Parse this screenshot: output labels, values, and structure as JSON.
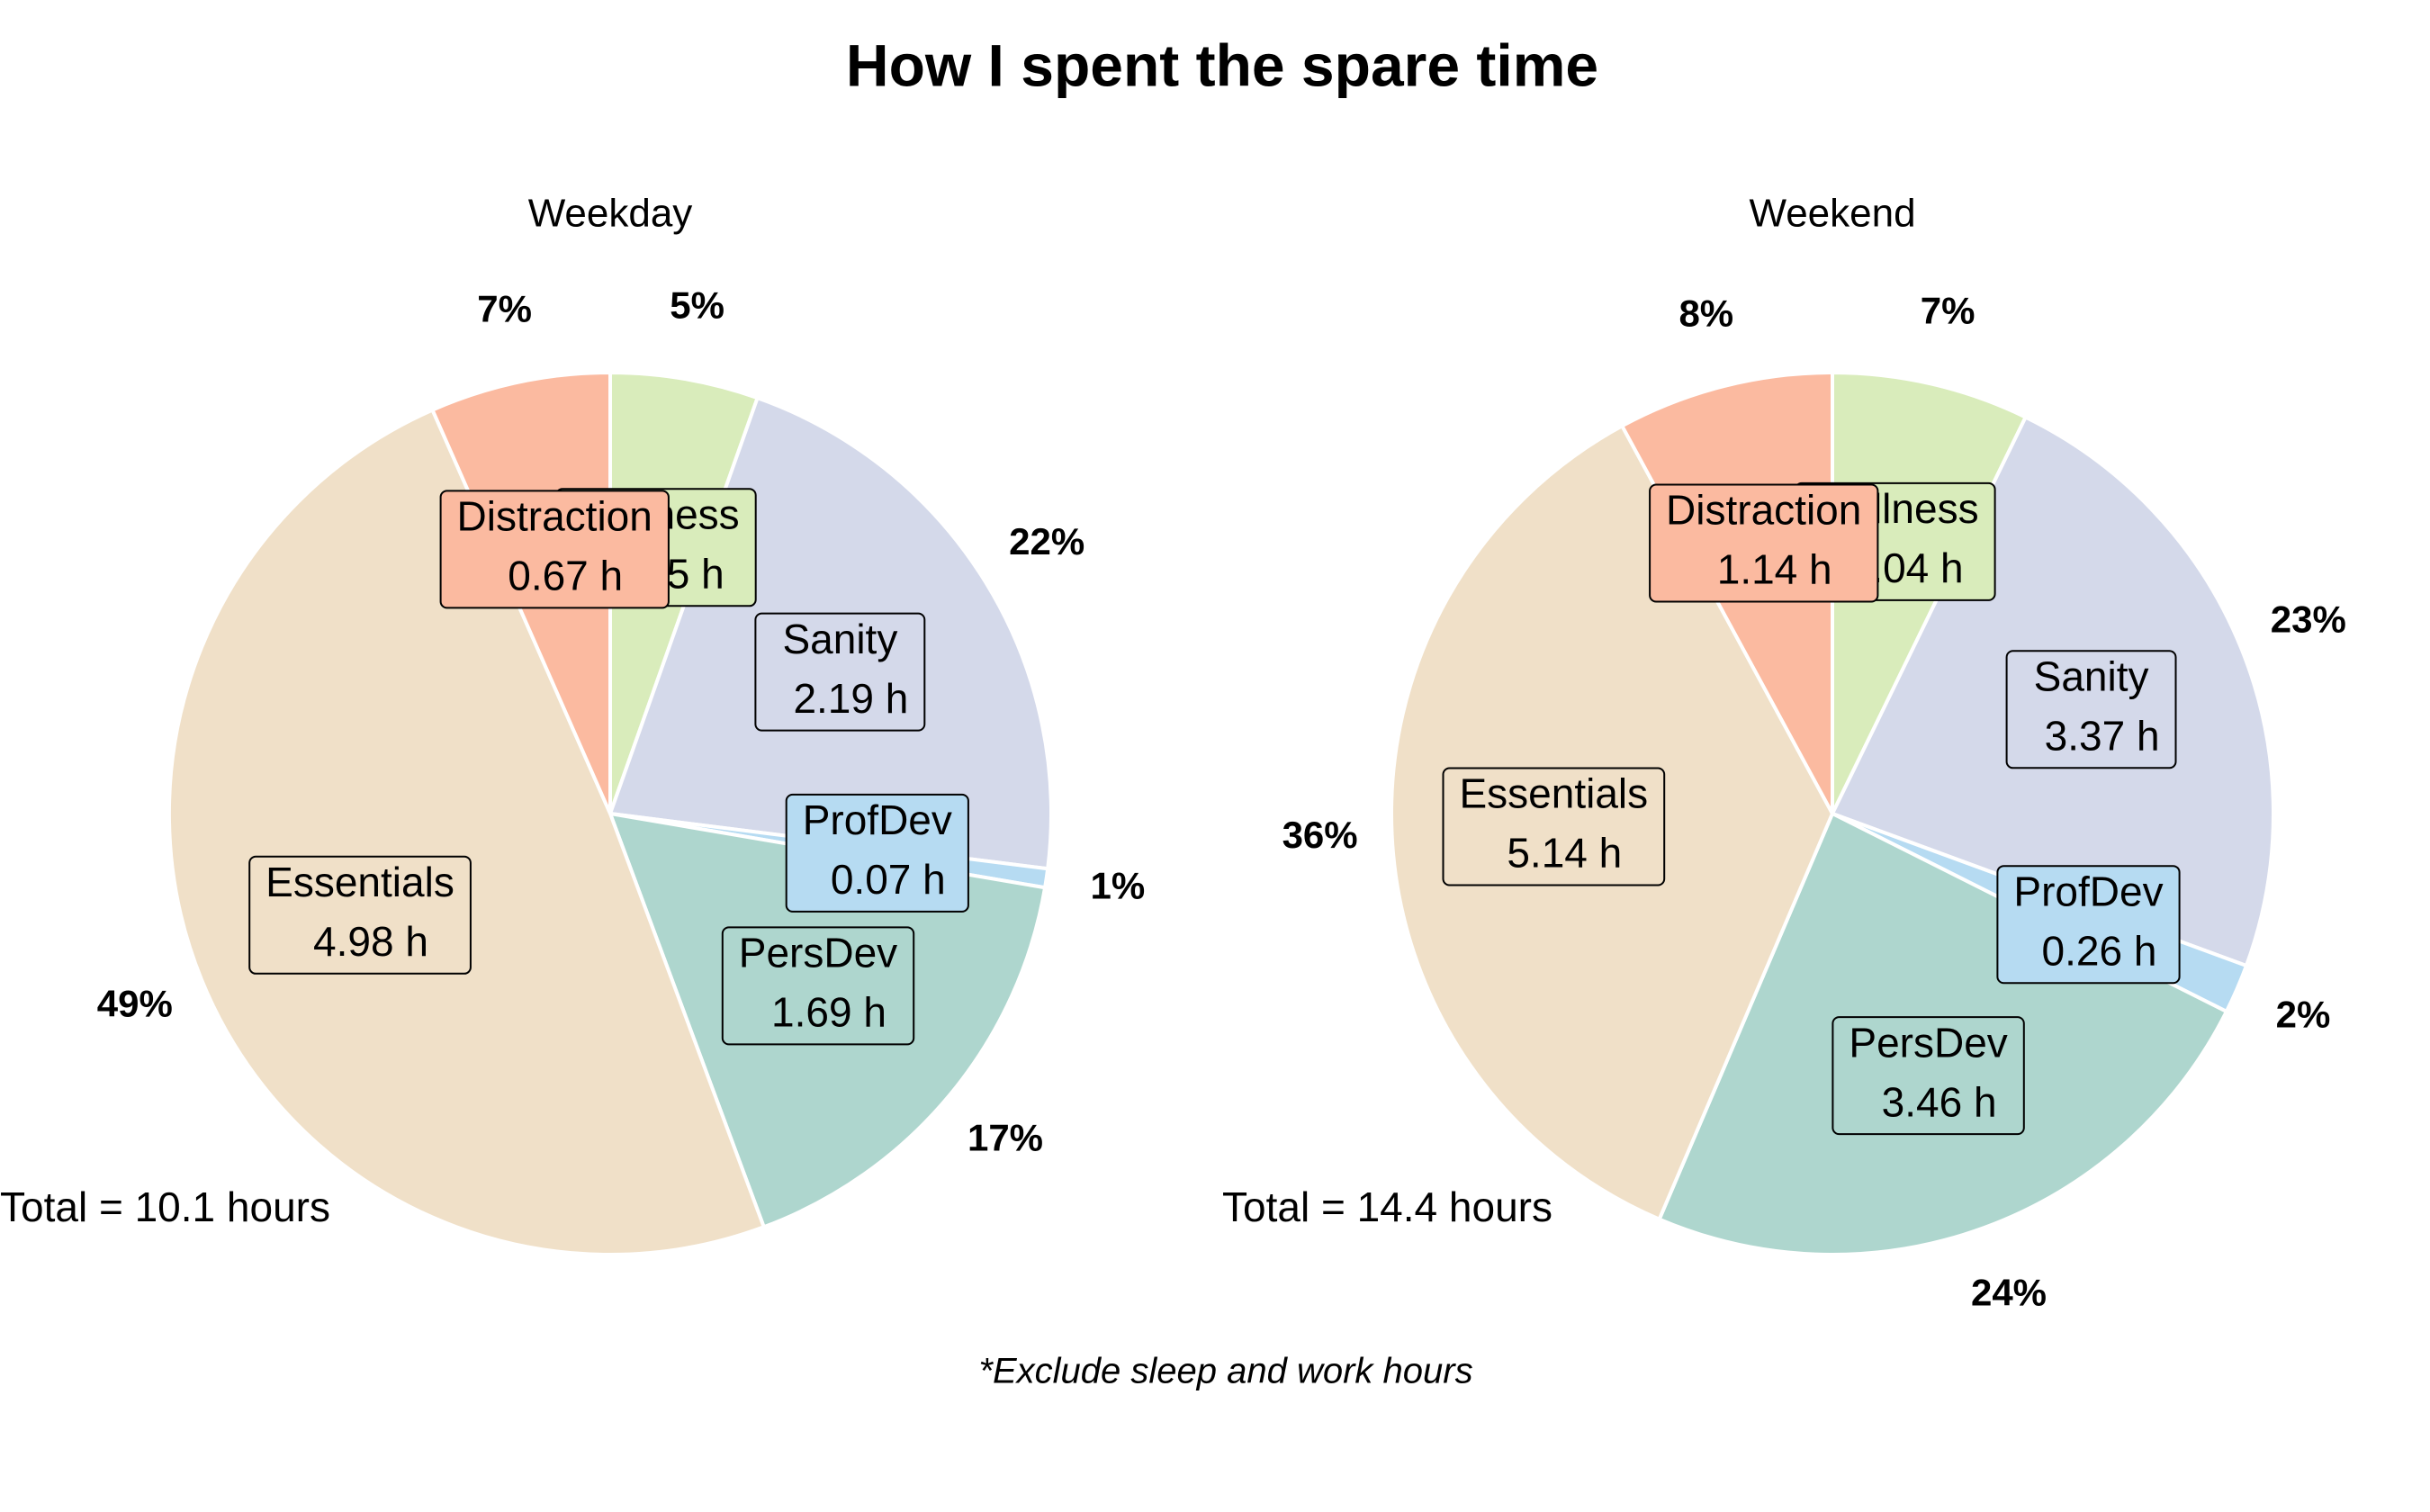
{
  "title": "How I spent the spare time",
  "caption": "*Exclude sleep and work hours",
  "categories": [
    "Wellness",
    "Sanity",
    "ProfDev",
    "PersDev",
    "Essentials",
    "Distraction"
  ],
  "colors": {
    "Wellness": "#d9ecbb",
    "Sanity": "#d4d9ea",
    "ProfDev": "#b6dbf2",
    "PersDev": "#aed6ce",
    "Essentials": "#f0e0c8",
    "Distraction": "#fbbaa0"
  },
  "chart_data": [
    {
      "type": "pie",
      "title": "Weekday",
      "total_label": "Total = 10.1 hours",
      "unit": "h",
      "slices": [
        {
          "label": "Wellness",
          "value": 0.55,
          "value_label": "0.55 h",
          "pct_label": "5%"
        },
        {
          "label": "Sanity",
          "value": 2.19,
          "value_label": "2.19 h",
          "pct_label": "22%"
        },
        {
          "label": "ProfDev",
          "value": 0.07,
          "value_label": "0.07 h",
          "pct_label": "1%"
        },
        {
          "label": "PersDev",
          "value": 1.69,
          "value_label": "1.69 h",
          "pct_label": "17%"
        },
        {
          "label": "Essentials",
          "value": 4.98,
          "value_label": "4.98 h",
          "pct_label": "49%"
        },
        {
          "label": "Distraction",
          "value": 0.67,
          "value_label": "0.67 h",
          "pct_label": "7%"
        }
      ]
    },
    {
      "type": "pie",
      "title": "Weekend",
      "total_label": "Total = 14.4 hours",
      "unit": "h",
      "slices": [
        {
          "label": "Wellness",
          "value": 1.04,
          "value_label": "1.04 h",
          "pct_label": "7%"
        },
        {
          "label": "Sanity",
          "value": 3.37,
          "value_label": "3.37 h",
          "pct_label": "23%"
        },
        {
          "label": "ProfDev",
          "value": 0.26,
          "value_label": "0.26 h",
          "pct_label": "2%"
        },
        {
          "label": "PersDev",
          "value": 3.46,
          "value_label": "3.46 h",
          "pct_label": "24%"
        },
        {
          "label": "Essentials",
          "value": 5.14,
          "value_label": "5.14 h",
          "pct_label": "36%"
        },
        {
          "label": "Distraction",
          "value": 1.14,
          "value_label": "1.14 h",
          "pct_label": "8%"
        }
      ]
    }
  ]
}
